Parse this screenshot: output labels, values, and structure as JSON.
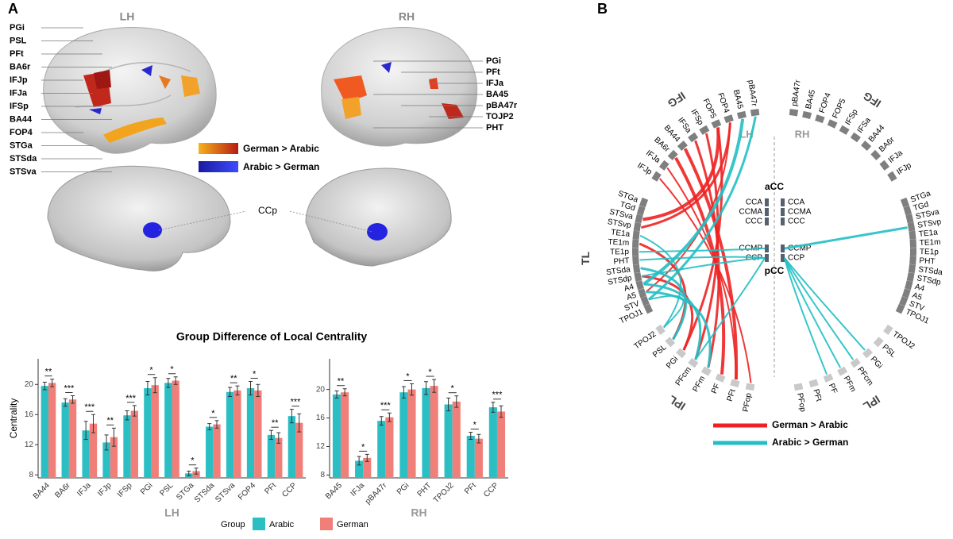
{
  "panel_a": {
    "letter": "A",
    "lh_label": "LH",
    "rh_label": "RH",
    "lh_regions": [
      "PGi",
      "PSL",
      "PFt",
      "BA6r",
      "IFJp",
      "IFJa",
      "IFSp",
      "BA44",
      "FOP4",
      "STGa",
      "STSda",
      "STSva"
    ],
    "rh_regions": [
      "PGi",
      "PFt",
      "IFJa",
      "BA45",
      "pBA47r",
      "TOJP2",
      "PHT"
    ],
    "legend": [
      "German > Arabic",
      "Arabic > German"
    ],
    "medial_label": "CCp",
    "chart_title": "Group Difference of Local Centrality"
  },
  "chart_data": [
    {
      "type": "bar",
      "y_label": "Centrality",
      "x_label": "LH",
      "legend_title": "Group",
      "categories": [
        "BA44",
        "BA6r",
        "IFJa",
        "IFJp",
        "IFSp",
        "PGi",
        "PSL",
        "STGa",
        "STSda",
        "STSva",
        "FOP4",
        "PFt",
        "CCP"
      ],
      "significance": [
        "**",
        "***",
        "***",
        "**",
        "***",
        "*",
        "*",
        "*",
        "*",
        "**",
        "*",
        "**",
        "***"
      ],
      "series": [
        {
          "name": "Arabic",
          "color": "#2bbfc4",
          "values": [
            19.8,
            17.6,
            13.9,
            12.3,
            15.9,
            19.5,
            20.2,
            8.2,
            14.4,
            19.0,
            19.5,
            13.3,
            15.8
          ],
          "errors": [
            0.5,
            0.5,
            1.2,
            1.0,
            0.6,
            0.9,
            0.6,
            0.3,
            0.4,
            0.6,
            0.9,
            0.6,
            0.9
          ]
        },
        {
          "name": "German",
          "color": "#f07f7a",
          "values": [
            20.2,
            18.0,
            14.8,
            13.0,
            16.5,
            19.9,
            20.5,
            8.5,
            14.7,
            19.2,
            19.2,
            12.9,
            14.9
          ],
          "errors": [
            0.5,
            0.5,
            1.2,
            1.2,
            0.7,
            1.0,
            0.5,
            0.4,
            0.5,
            0.6,
            0.8,
            0.7,
            1.2
          ]
        }
      ],
      "ylim": [
        7.6,
        23.4
      ],
      "yticks": [
        8,
        12,
        16,
        20
      ]
    },
    {
      "type": "bar",
      "x_label": "RH",
      "categories": [
        "BA45",
        "IFJa",
        "pBA47r",
        "PGi",
        "PHT",
        "TPOJ2",
        "PFt",
        "CCP"
      ],
      "significance": [
        "**",
        "*",
        "***",
        "*",
        "*",
        "*",
        "*",
        "***"
      ],
      "series": [
        {
          "color": "#2bbfc4",
          "values": [
            19.3,
            10.0,
            15.6,
            19.6,
            20.2,
            17.9,
            13.5,
            17.5
          ],
          "errors": [
            0.5,
            0.6,
            0.6,
            0.8,
            0.9,
            0.9,
            0.5,
            0.7
          ]
        },
        {
          "color": "#f07f7a",
          "values": [
            19.6,
            10.4,
            16.1,
            20.0,
            20.5,
            18.3,
            13.1,
            16.9
          ],
          "errors": [
            0.5,
            0.5,
            0.6,
            0.8,
            0.9,
            0.8,
            0.6,
            0.8
          ]
        }
      ],
      "ylim": [
        7.6,
        24.3
      ],
      "yticks": [
        8,
        12,
        16,
        20
      ]
    }
  ],
  "panel_b": {
    "letter": "B",
    "lh_label": "LH",
    "rh_label": "RH",
    "lh_groups": [
      {
        "name": "IFG",
        "regions": [
          "IFJp",
          "IFJa",
          "BA6r",
          "BA44",
          "IFSa",
          "IFSp",
          "FOP5",
          "FOP4",
          "BA45",
          "pBA47r"
        ]
      },
      {
        "name": "TL",
        "regions": [
          "STGa",
          "TGd",
          "STSva",
          "STSvp",
          "TE1a",
          "TE1m",
          "TE1p",
          "PHT",
          "STSda",
          "STSdp",
          "A4",
          "A5",
          "STV",
          "TPOJ1"
        ]
      },
      {
        "name": "IPL",
        "regions": [
          "TPOJ2",
          "PSL",
          "PGi",
          "PFcm",
          "PFm",
          "PF",
          "PFt",
          "PFop"
        ]
      }
    ],
    "rh_groups": [
      {
        "name": "IFG",
        "regions": [
          "IFJp",
          "IFJa",
          "BA6r",
          "BA44",
          "IFSa",
          "IFSp",
          "FOP5",
          "FOP4",
          "BA45",
          "pBA47r"
        ]
      },
      {
        "name": "TL",
        "regions": [
          "STGa",
          "TGd",
          "STSva",
          "STSvp",
          "TE1a",
          "TE1m",
          "TE1p",
          "PHT",
          "STSda",
          "STSdp",
          "A4",
          "A5",
          "STV",
          "TPOJ1"
        ]
      },
      {
        "name": "IPL",
        "regions": [
          "TPOJ2",
          "PSL",
          "PGi",
          "PFcm",
          "PFm",
          "PF",
          "PFt",
          "PFop"
        ]
      }
    ],
    "midline": {
      "acc_label": "aCC",
      "pcc_label": "pCC",
      "lh_acc": [
        "CCA",
        "CCMA",
        "CCC"
      ],
      "rh_acc": [
        "CCA",
        "CCMA",
        "CCC"
      ],
      "lh_pcc": [
        "CCMP",
        "CCP"
      ],
      "rh_pcc": [
        "CCMP",
        "CCP"
      ]
    },
    "legend": [
      {
        "label": "German > Arabic",
        "color": "#ee2222"
      },
      {
        "label": "Arabic > German",
        "color": "#22bfc4"
      }
    ]
  }
}
